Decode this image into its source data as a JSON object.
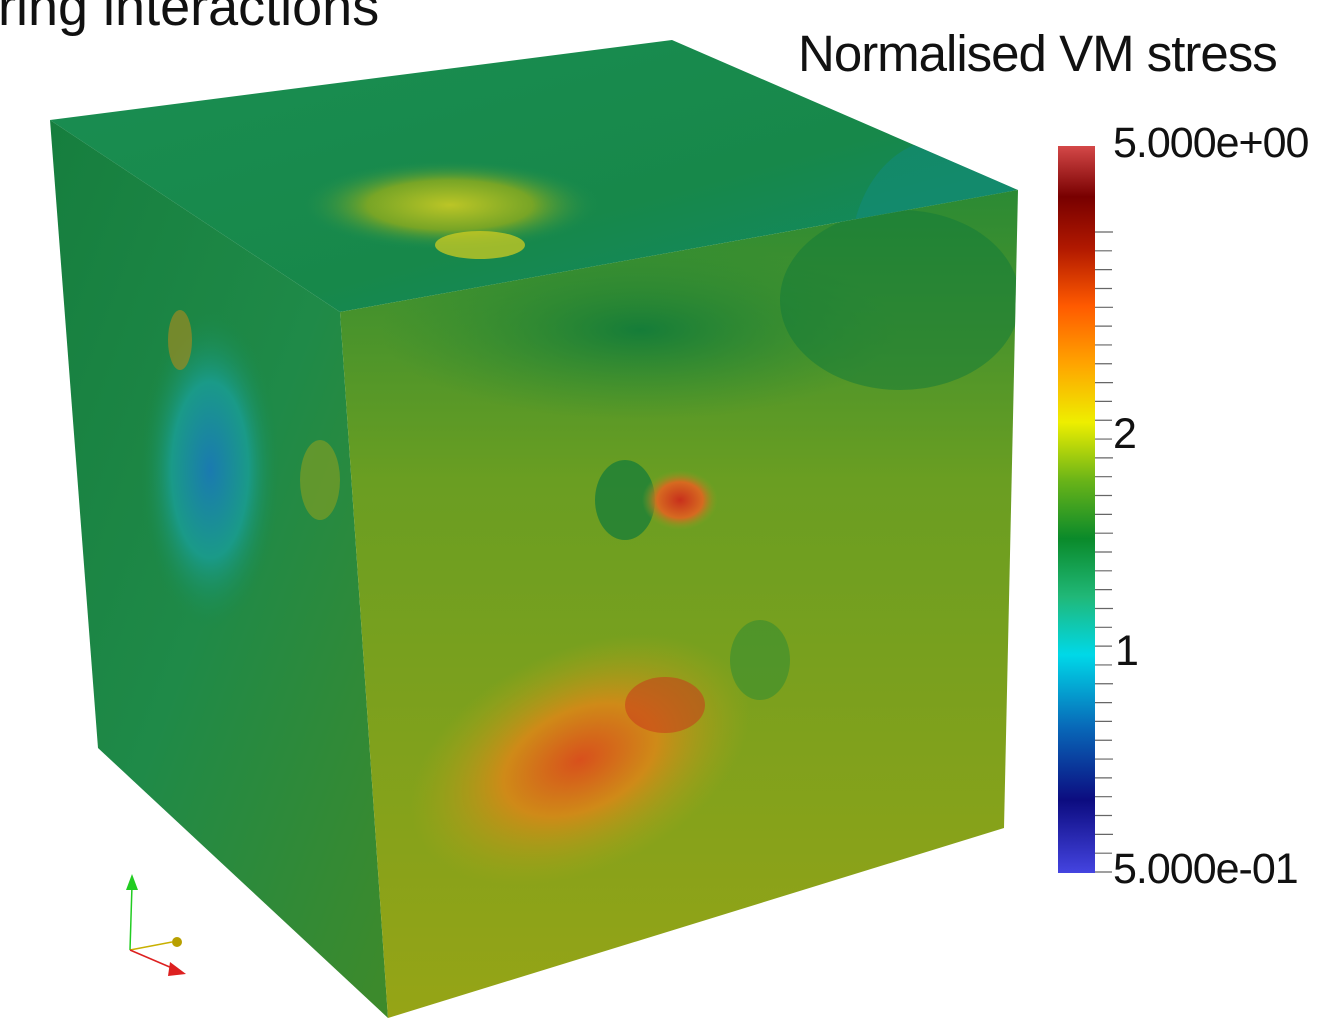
{
  "slide": {
    "heading": "ring interactions"
  },
  "legend": {
    "title": "Normalised VM stress",
    "ticks": {
      "max": "5.000e+00",
      "mid_upper": "2",
      "mid_lower": "1",
      "min": "5.000e-01"
    },
    "colormap": [
      "#3f3fd8",
      "#0a0a7a",
      "#0078c8",
      "#00e8e8",
      "#18b070",
      "#0a8a2a",
      "#7ab814",
      "#f0f000",
      "#ffa000",
      "#ff5800",
      "#b01400",
      "#7a0000",
      "#d84848"
    ]
  },
  "scene": {
    "object": "cube",
    "face_colors": {
      "top_base": "#148a4e",
      "left_base": "#1a8a48",
      "front_base": "#6fa020"
    },
    "axes_triad_colors": {
      "y": "#22cc22",
      "x": "#c8b000",
      "z": "#dd2020"
    }
  }
}
